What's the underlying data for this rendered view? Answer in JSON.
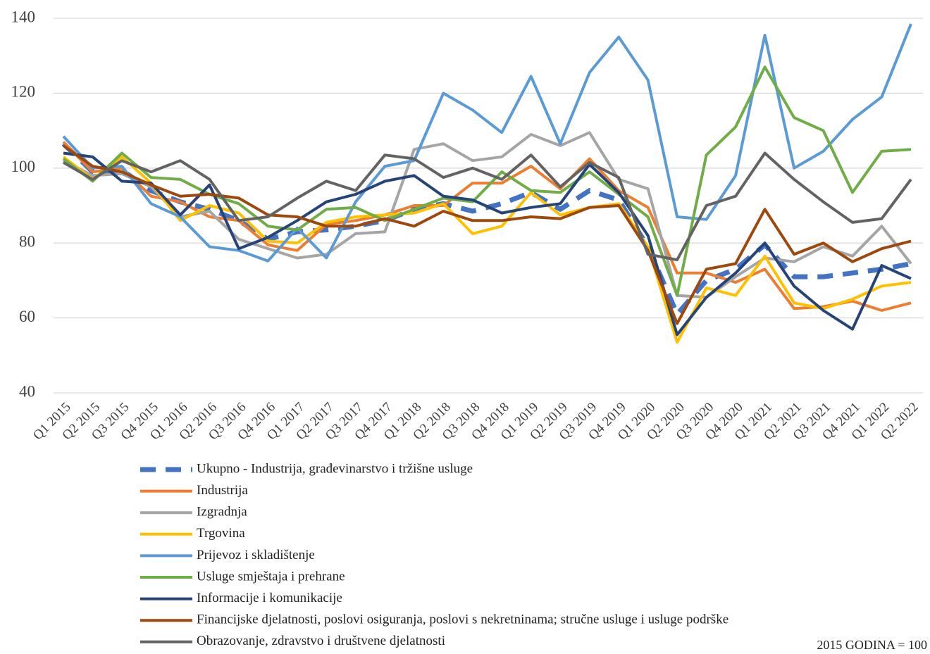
{
  "chart_data": {
    "type": "line",
    "categories": [
      "Q1 2015",
      "Q2 2015",
      "Q3 2015",
      "Q4 2015",
      "Q1 2016",
      "Q2 2016",
      "Q3 2016",
      "Q4 2016",
      "Q1 2017",
      "Q2 2017",
      "Q3 2017",
      "Q4 2017",
      "Q1 2018",
      "Q2 2018",
      "Q3 2018",
      "Q4 2018",
      "Q1 2019",
      "Q2 2019",
      "Q3 2019",
      "Q4 2019",
      "Q1 2020",
      "Q2 2020",
      "Q3 2020",
      "Q4 2020",
      "Q1 2021",
      "Q2 2021",
      "Q3 2021",
      "Q4 2021",
      "Q1 2022",
      "Q2 2022"
    ],
    "ylim": [
      40,
      140
    ],
    "yticks": [
      40,
      60,
      80,
      100,
      120,
      140
    ],
    "grid": true,
    "annotation": "2015 GODINA = 100",
    "series": [
      {
        "name": "Ukupno - Industrija, građevinarstvo i tržišne usluge",
        "color": "#4472c4",
        "dashed": true,
        "values": [
          106.5,
          99,
          99.5,
          94,
          91,
          89,
          86,
          81,
          83,
          83.5,
          84.5,
          86,
          89,
          90.5,
          88.5,
          90.5,
          93.5,
          89,
          94,
          91.5,
          79,
          61,
          70,
          73,
          79.5,
          71,
          71,
          72,
          73,
          74.5
        ]
      },
      {
        "name": "Industrija",
        "color": "#ed7d31",
        "values": [
          107,
          99,
          100,
          92.5,
          91,
          87,
          86,
          79.5,
          78,
          85,
          86,
          87.5,
          90,
          90,
          96,
          96,
          100.5,
          94.5,
          102.5,
          94,
          89.5,
          72,
          72,
          69.5,
          73,
          62.5,
          63,
          64.5,
          62,
          64
        ]
      },
      {
        "name": "Izgradnja",
        "color": "#a5a5a5",
        "values": [
          102,
          98,
          98.5,
          95,
          87,
          88.5,
          81,
          78.5,
          76,
          77,
          82.5,
          83,
          105,
          106.5,
          102,
          103,
          109,
          106,
          109.5,
          97,
          94.5,
          66,
          65.5,
          71,
          76,
          75,
          79,
          76.5,
          84.5,
          74.5
        ]
      },
      {
        "name": "Trgovina",
        "color": "#ffc000",
        "values": [
          103,
          97,
          103,
          96,
          86,
          90,
          88,
          80.5,
          80,
          85.5,
          87,
          87.5,
          88,
          90.5,
          82.5,
          84.5,
          93.5,
          87.5,
          89.5,
          90.5,
          79,
          53.5,
          68,
          66,
          76.5,
          64,
          62.5,
          65,
          68.5,
          69.5
        ]
      },
      {
        "name": "Prijevoz i skladištenje",
        "color": "#5b9bd5",
        "values": [
          108.5,
          100,
          100.5,
          90.5,
          87,
          79,
          78,
          75.2,
          84,
          76,
          91,
          100.5,
          102,
          120,
          115.5,
          109.5,
          124.5,
          106.5,
          125.5,
          135,
          123.5,
          87,
          86.3,
          98,
          135.5,
          100,
          104.5,
          113,
          119,
          138.5
        ]
      },
      {
        "name": "Usluge smještaja i prehrane",
        "color": "#70ad47",
        "values": [
          102.5,
          96.5,
          104,
          97.5,
          97,
          93,
          90.5,
          84.5,
          83.5,
          89,
          89.5,
          86,
          89,
          92,
          91,
          99,
          94,
          93.5,
          99,
          93,
          87,
          66,
          103.5,
          111,
          127,
          113.5,
          110,
          93.5,
          104.5,
          105
        ]
      },
      {
        "name": "Informacije i komunikacije",
        "color": "#264478",
        "values": [
          104,
          103,
          96.5,
          96,
          87.5,
          95.5,
          78.5,
          81.5,
          86,
          91,
          93,
          96.5,
          98,
          92.5,
          91.5,
          88,
          89.5,
          90.5,
          101,
          93.5,
          82,
          55.5,
          65.5,
          72,
          80,
          68.5,
          62,
          57,
          74,
          70.5
        ]
      },
      {
        "name": "Financijske djelatnosti, poslovi osiguranja, poslovi s nekretninama; stručne usluge i usluge podrške",
        "color": "#9e480e",
        "values": [
          106,
          100.5,
          99,
          95.5,
          92.5,
          93,
          92,
          87.5,
          87,
          84.5,
          84.5,
          86.5,
          84.5,
          88.5,
          86,
          86,
          87,
          86.5,
          89.5,
          90,
          78,
          58.5,
          73,
          74.5,
          89,
          77,
          80,
          75,
          78.5,
          80.5
        ]
      },
      {
        "name": "Obrazovanje, zdravstvo i društvene djelatnosti",
        "color": "#636363",
        "values": [
          101.5,
          97,
          102,
          99,
          102,
          97,
          86,
          87,
          92,
          96.5,
          94,
          103.5,
          102.5,
          97.5,
          100,
          97,
          103.5,
          95,
          101.5,
          97.5,
          77,
          75.5,
          90,
          92.5,
          104,
          97,
          91,
          85.5,
          86.5,
          97
        ]
      }
    ]
  }
}
